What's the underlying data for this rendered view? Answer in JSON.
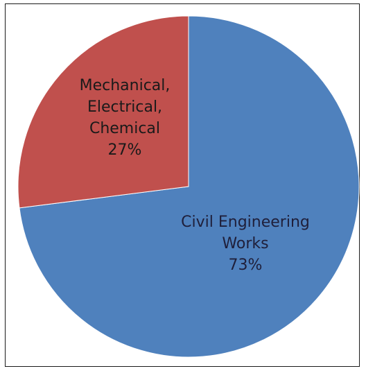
{
  "chart_data": {
    "type": "pie",
    "title": "",
    "slices": [
      {
        "label_lines": [
          "Civil Engineering",
          "Works"
        ],
        "percent_label": "73%",
        "value": 73,
        "color": "#4f81bd",
        "label_color": "#1f1f3a"
      },
      {
        "label_lines": [
          "Mechanical,",
          "Electrical,",
          "Chemical"
        ],
        "percent_label": "27%",
        "value": 27,
        "color": "#c0504d",
        "label_color": "#1a1a1a"
      }
    ],
    "start_angle_deg": 0,
    "direction": "clockwise",
    "legend": "none"
  }
}
